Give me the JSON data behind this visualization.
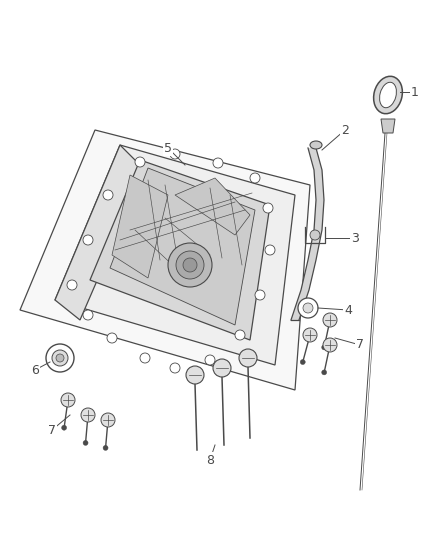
{
  "background_color": "#ffffff",
  "line_color": "#4a4a4a",
  "label_color": "#222222",
  "figure_width": 4.38,
  "figure_height": 5.33,
  "dpi": 100,
  "pan_fill": "#f5f5f5",
  "pan_inner_fill": "#ececec",
  "pan_dark_fill": "#e0e0e0",
  "shadow_fill": "#d8d8d8"
}
